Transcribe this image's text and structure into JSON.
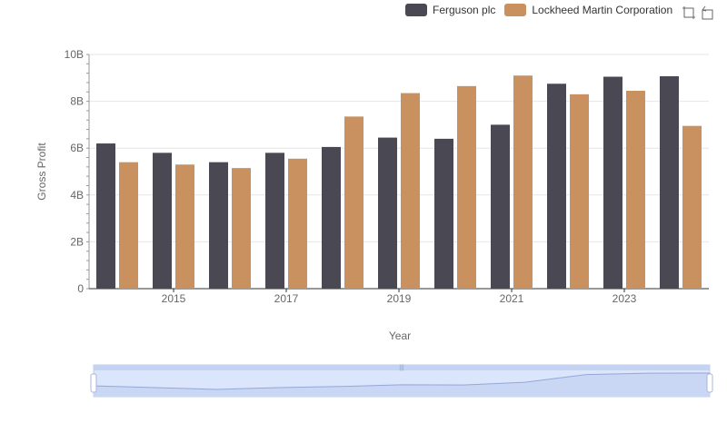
{
  "legend": {
    "items": [
      {
        "label": "Ferguson plc",
        "color": "#4a4953"
      },
      {
        "label": "Lockheed Martin Corporation",
        "color": "#c99160"
      }
    ]
  },
  "toolbox": {
    "icons": [
      "zoom-icon",
      "restore-icon"
    ]
  },
  "chart_data": {
    "type": "bar",
    "xlabel": "Year",
    "ylabel": "Gross Profit",
    "ylim": [
      0,
      10000000000
    ],
    "y_ticks": [
      "0",
      "2B",
      "4B",
      "6B",
      "8B",
      "10B"
    ],
    "x_tick_labels": [
      "2015",
      "2017",
      "2019",
      "2021",
      "2023"
    ],
    "categories": [
      "2014",
      "2015",
      "2016",
      "2017",
      "2018",
      "2019",
      "2020",
      "2021",
      "2022",
      "2023",
      "2024"
    ],
    "series": [
      {
        "name": "Ferguson plc",
        "color": "#4a4953",
        "values": [
          6200000000,
          5800000000,
          5400000000,
          5800000000,
          6050000000,
          6450000000,
          6400000000,
          7000000000,
          8750000000,
          9050000000,
          9070000000
        ]
      },
      {
        "name": "Lockheed Martin Corporation",
        "color": "#c99160",
        "values": [
          5400000000,
          5300000000,
          5150000000,
          5550000000,
          7350000000,
          8350000000,
          8650000000,
          9100000000,
          8300000000,
          8450000000,
          6950000000
        ]
      }
    ],
    "grid": true,
    "legend_position": "top-right",
    "data_zoom": {
      "start": 0,
      "end": 100
    }
  }
}
